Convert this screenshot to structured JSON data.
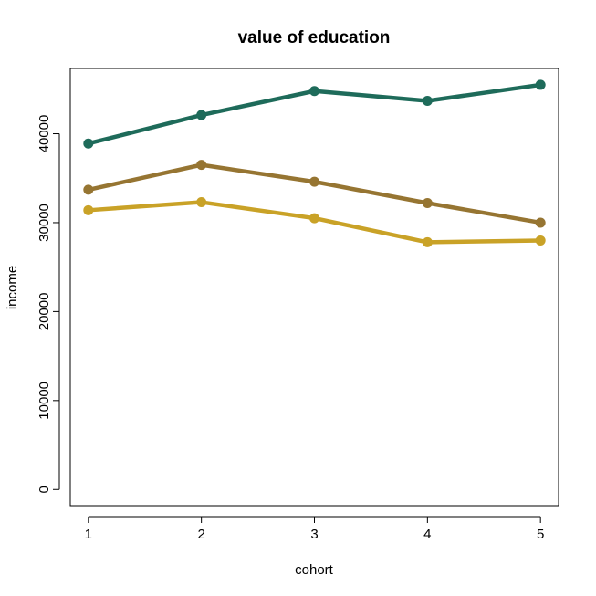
{
  "chart_data": {
    "type": "line",
    "title": "value of education",
    "xlabel": "cohort",
    "ylabel": "income",
    "x": [
      1,
      2,
      3,
      4,
      5
    ],
    "xlim": [
      0.84,
      5.16
    ],
    "ylim": [
      -1820,
      47340
    ],
    "x_ticks": [
      "1",
      "2",
      "3",
      "4",
      "5"
    ],
    "y_ticks": [
      "0",
      "10000",
      "20000",
      "30000",
      "40000"
    ],
    "grid": false,
    "legend": "none",
    "series": [
      {
        "color": "#1e6b5a",
        "values": [
          38900,
          42100,
          44800,
          43700,
          45500
        ]
      },
      {
        "color": "#967532",
        "values": [
          33700,
          36500,
          34600,
          32200,
          30000
        ]
      },
      {
        "color": "#c9a227",
        "values": [
          31400,
          32300,
          30500,
          27800,
          28000
        ]
      }
    ]
  }
}
